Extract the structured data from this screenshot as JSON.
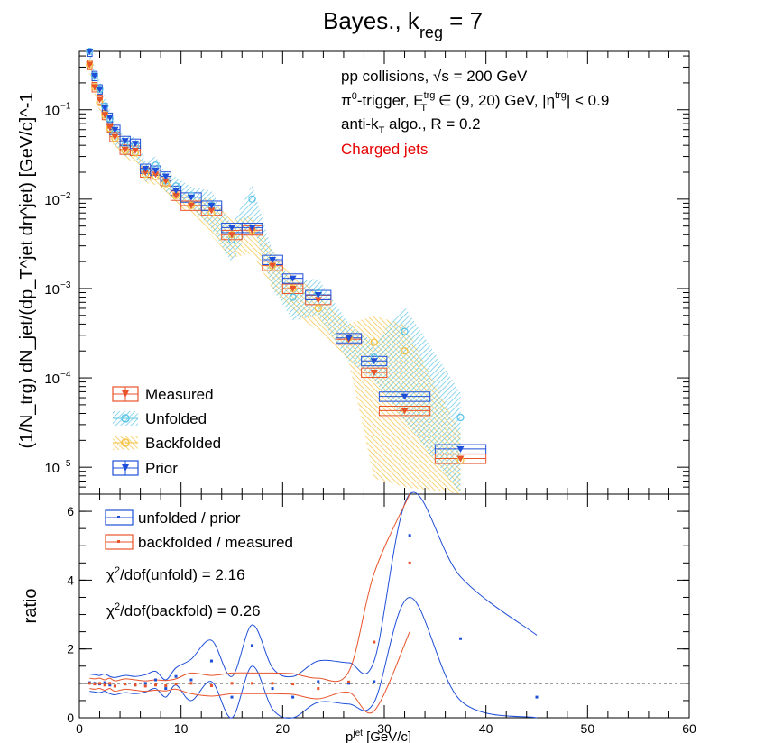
{
  "chart_data": [
    {
      "type": "scatter",
      "panel": "top",
      "title_main": "Bayes., k",
      "title_sub": "reg",
      "title_end": " = 7",
      "ylabel": "(1/N_trg) dN_jet/(dp_T^jet dη^jet) [GeV/c]^-1",
      "yscale": "log",
      "xlim": [
        0,
        60
      ],
      "ylim": [
        5e-06,
        0.45
      ],
      "y_ticks": [
        {
          "label": "10",
          "exp": "−5",
          "value": 1e-05
        },
        {
          "label": "10",
          "exp": "−4",
          "value": 0.0001
        },
        {
          "label": "10",
          "exp": "−3",
          "value": 0.001
        },
        {
          "label": "10",
          "exp": "−2",
          "value": 0.01
        },
        {
          "label": "10",
          "exp": "−1",
          "value": 0.1
        }
      ],
      "annotations": {
        "line1": "pp collisions, √s = 200 GeV",
        "line2_pre": "π",
        "line2_sup0": "0",
        "line2_mid": "-trigger, E",
        "line2_sup1": "trg",
        "line2_sub1": "T",
        "line2_mid2": " ∈ (9, 20) GeV, |η",
        "line2_sup2": "trg",
        "line2_end": "| < 0.9",
        "line3_pre": "anti-k",
        "line3_sub": "T",
        "line3_end": " algo., R = 0.2",
        "line4": "Charged jets"
      },
      "legend_position": "bottom-left",
      "legend": [
        "Measured",
        "Unfolded",
        "Backfolded",
        "Prior"
      ],
      "colors": {
        "measured": "#e8532a",
        "unfolded": "#5ec5e6",
        "backfolded": "#f5c242",
        "prior": "#1f4fd8"
      },
      "bins_x": [
        1.0,
        1.5,
        2.0,
        2.5,
        3.0,
        3.5,
        4.5,
        5.5,
        6.5,
        7.5,
        8.5,
        9.5,
        11,
        13,
        15,
        17,
        19,
        21,
        23.5,
        26.5,
        29,
        32,
        37.5
      ],
      "bins_halfwidth": [
        0.25,
        0.25,
        0.25,
        0.25,
        0.25,
        0.5,
        0.5,
        0.5,
        0.5,
        0.5,
        0.5,
        0.5,
        1,
        1,
        1,
        1,
        1,
        1,
        1.25,
        1.25,
        1.25,
        2.5,
        2.5
      ],
      "measured": [
        0.32,
        0.18,
        0.13,
        0.088,
        0.064,
        0.05,
        0.036,
        0.035,
        0.02,
        0.019,
        0.016,
        0.011,
        0.0085,
        0.0075,
        0.004,
        0.0045,
        0.0018,
        0.001,
        0.00075,
        0.00027,
        0.000115,
        4.3e-05,
        1.25e-05
      ],
      "prior": [
        0.45,
        0.24,
        0.17,
        0.105,
        0.082,
        0.06,
        0.045,
        0.042,
        0.022,
        0.021,
        0.018,
        0.0125,
        0.0105,
        0.0085,
        0.0048,
        0.0048,
        0.0021,
        0.0013,
        0.00085,
        0.00028,
        0.000155,
        6.2e-05,
        1.6e-05
      ],
      "unfolded": [
        0.46,
        0.24,
        0.17,
        0.11,
        0.08,
        0.055,
        0.04,
        0.04,
        0.021,
        0.024,
        0.016,
        0.014,
        0.011,
        0.0085,
        0.0035,
        0.01,
        0.0018,
        0.0008,
        0.0009,
        0.00028,
        0.00017,
        0.00033,
        3.6e-05
      ],
      "backfolded": [
        0.32,
        0.18,
        0.12,
        0.088,
        0.062,
        0.048,
        0.035,
        0.033,
        0.019,
        0.018,
        0.015,
        0.011,
        0.0085,
        0.007,
        0.004,
        0.0045,
        0.0018,
        0.001,
        0.0006,
        0.00028,
        0.00025,
        0.0002,
        1.2e-05
      ]
    },
    {
      "type": "scatter",
      "panel": "bottom",
      "xlabel_pre": "p",
      "xlabel_sup": "jet",
      "xlabel_sub": "T",
      "xlabel_end": " [GeV/c]",
      "ylabel": "ratio",
      "xlim": [
        0,
        60
      ],
      "ylim": [
        0,
        6.5
      ],
      "x_ticks": [
        0,
        10,
        20,
        30,
        40,
        50,
        60
      ],
      "y_ticks": [
        0,
        2,
        4,
        6
      ],
      "reference_line": 1,
      "legend": [
        "unfolded / prior",
        "backfolded / measured"
      ],
      "chi2_unfold_pre": "χ",
      "chi2_unfold_sup": "2",
      "chi2_unfold_end": "/dof(unfold) = 2.16",
      "chi2_backfold_pre": "χ",
      "chi2_backfold_sup": "2",
      "chi2_backfold_end": "/dof(backfold) = 0.26",
      "colors": {
        "unfolded_over_prior": "#1f4fd8",
        "backfolded_over_measured": "#e8532a"
      },
      "series": [
        {
          "name": "unfolded / prior",
          "x": [
            1.0,
            1.5,
            2.0,
            2.5,
            3.0,
            3.5,
            4.5,
            5.5,
            6.5,
            7.5,
            8.5,
            9.5,
            11,
            13,
            15,
            17,
            19,
            21,
            23.5,
            26.5,
            29,
            32.5,
            37.5,
            45
          ],
          "y": [
            1.02,
            1.0,
            0.98,
            1.02,
            0.95,
            0.92,
            0.98,
            0.95,
            1.0,
            1.1,
            0.85,
            1.2,
            1.1,
            1.65,
            0.6,
            2.1,
            0.85,
            0.6,
            1.05,
            1.0,
            1.05,
            5.3,
            2.3,
            0.6
          ]
        },
        {
          "name": "backfolded / measured",
          "x": [
            1.0,
            1.5,
            2.0,
            2.5,
            3.0,
            3.5,
            4.5,
            5.5,
            6.5,
            7.5,
            8.5,
            9.5,
            11,
            13,
            15,
            17,
            19,
            21,
            23.5,
            26.5,
            29,
            32.5
          ],
          "y": [
            1.0,
            0.98,
            1.0,
            0.95,
            1.0,
            0.92,
            0.98,
            0.95,
            0.92,
            0.95,
            0.93,
            0.98,
            1.0,
            0.93,
            1.0,
            1.0,
            1.0,
            0.98,
            0.85,
            1.04,
            2.2,
            4.5
          ]
        }
      ]
    }
  ]
}
